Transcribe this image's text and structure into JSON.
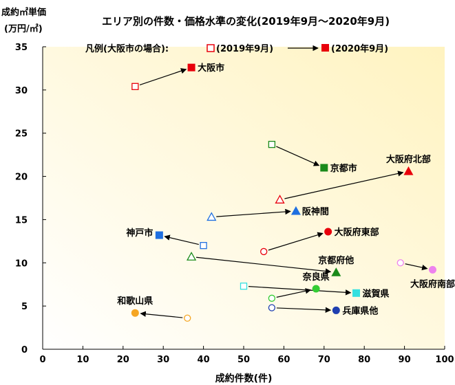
{
  "chart_data": {
    "type": "scatter",
    "title": "エリア別の件数・価格水準の変化(2019年9月〜2020年9月)",
    "ylabel_line1": "成約㎡単価",
    "ylabel_line2": "(万円/㎡)",
    "xlabel": "成約件数(件)",
    "xlim": [
      0,
      100
    ],
    "ylim": [
      0,
      35
    ],
    "xticks": [
      0,
      10,
      20,
      30,
      40,
      50,
      60,
      70,
      80,
      90,
      100
    ],
    "yticks": [
      0,
      5,
      10,
      15,
      20,
      25,
      30,
      35
    ],
    "legend": {
      "prefix": "凡例(大阪市の場合):",
      "from_label": "(2019年9月)",
      "to_label": "(2020年9月)"
    },
    "background_gradient": [
      "#fff3c0",
      "#ffffff"
    ],
    "areas": [
      {
        "name": "大阪市",
        "marker": "square",
        "color": "#e8000b",
        "from": [
          23,
          30.4
        ],
        "to": [
          37,
          32.6
        ],
        "label_side": "right"
      },
      {
        "name": "京都市",
        "marker": "square",
        "color": "#1a8a1a",
        "from": [
          57,
          23.7
        ],
        "to": [
          70,
          21.0
        ],
        "label_side": "right"
      },
      {
        "name": "大阪府北部",
        "marker": "triangle",
        "color": "#e8000b",
        "from": [
          59,
          17.3
        ],
        "to": [
          91,
          20.6
        ],
        "label_side": "above"
      },
      {
        "name": "阪神間",
        "marker": "triangle",
        "color": "#1f6fe0",
        "from": [
          42,
          15.3
        ],
        "to": [
          63,
          16.0
        ],
        "label_side": "right"
      },
      {
        "name": "大阪府東部",
        "marker": "circle",
        "color": "#e8000b",
        "from": [
          55,
          11.3
        ],
        "to": [
          71,
          13.6
        ],
        "label_side": "right"
      },
      {
        "name": "神戸市",
        "marker": "square",
        "color": "#1f6fe0",
        "from": [
          40,
          12.0
        ],
        "to": [
          29,
          13.2
        ],
        "label_side": "left"
      },
      {
        "name": "京都府他",
        "marker": "triangle",
        "color": "#1a8a1a",
        "from": [
          37,
          10.7
        ],
        "to": [
          73,
          8.9
        ],
        "label_side": "above"
      },
      {
        "name": "大阪府南部",
        "marker": "circle",
        "color": "#ee82ee",
        "from": [
          89,
          10.0
        ],
        "to": [
          97,
          9.2
        ],
        "label_side": "below"
      },
      {
        "name": "奈良県",
        "marker": "circle",
        "color": "#33cc33",
        "from": [
          57,
          5.9
        ],
        "to": [
          68,
          7.0
        ],
        "label_side": "above"
      },
      {
        "name": "滋賀県",
        "marker": "square",
        "color": "#33e0e0",
        "from": [
          50,
          7.3
        ],
        "to": [
          78,
          6.5
        ],
        "label_side": "right"
      },
      {
        "name": "兵庫県他",
        "marker": "circle",
        "color": "#1f3fb0",
        "from": [
          57,
          4.8
        ],
        "to": [
          73,
          4.5
        ],
        "label_side": "right"
      },
      {
        "name": "和歌山県",
        "marker": "circle",
        "color": "#f5a623",
        "from": [
          36,
          3.6
        ],
        "to": [
          23,
          4.2
        ],
        "label_side": "above"
      }
    ]
  }
}
